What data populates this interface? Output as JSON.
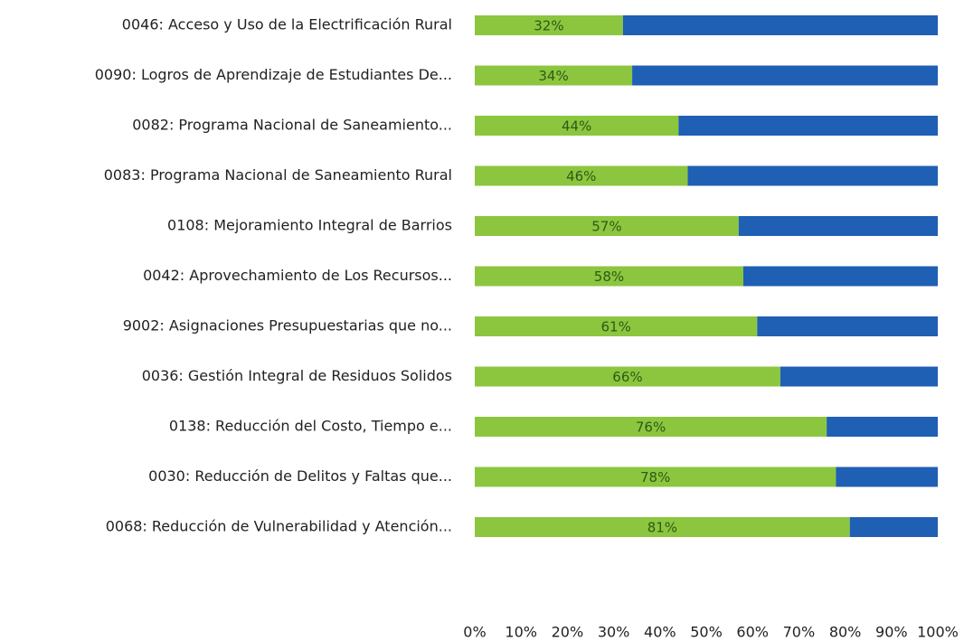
{
  "chart_data": {
    "type": "stacked-bar-horizontal",
    "categories": [
      "0046: Acceso y Uso de la Electrificación Rural",
      "0090: Logros de Aprendizaje de Estudiantes De...",
      "0082: Programa Nacional de Saneamiento...",
      "0083: Programa Nacional de Saneamiento Rural",
      "0108: Mejoramiento Integral de Barrios",
      "0042: Aprovechamiento de Los Recursos...",
      "9002: Asignaciones Presupuestarias que no...",
      "0036: Gestión Integral de Residuos Solidos",
      "0138: Reducción del Costo, Tiempo e...",
      "0030: Reducción de Delitos y Faltas que...",
      "0068: Reducción de Vulnerabilidad y Atención..."
    ],
    "series": [
      {
        "color": "#8cc63f",
        "values": [
          32,
          34,
          44,
          46,
          57,
          58,
          61,
          66,
          76,
          78,
          81
        ],
        "value_labels": [
          "32%",
          "34%",
          "44%",
          "46%",
          "57%",
          "58%",
          "61%",
          "66%",
          "76%",
          "78%",
          "81%"
        ]
      },
      {
        "color": "#1f5fb4",
        "values": [
          68,
          66,
          56,
          54,
          43,
          42,
          39,
          34,
          24,
          22,
          19
        ]
      }
    ],
    "xlim": [
      0,
      100
    ],
    "xticks": [
      {
        "value": 0,
        "label": "0%"
      },
      {
        "value": 10,
        "label": "10%"
      },
      {
        "value": 20,
        "label": "20%"
      },
      {
        "value": 30,
        "label": "30%"
      },
      {
        "value": 40,
        "label": "40%"
      },
      {
        "value": 50,
        "label": "50%"
      },
      {
        "value": 60,
        "label": "60%"
      },
      {
        "value": 70,
        "label": "70%"
      },
      {
        "value": 80,
        "label": "80%"
      },
      {
        "value": 90,
        "label": "90%"
      },
      {
        "value": 100,
        "label": "100%"
      }
    ]
  }
}
